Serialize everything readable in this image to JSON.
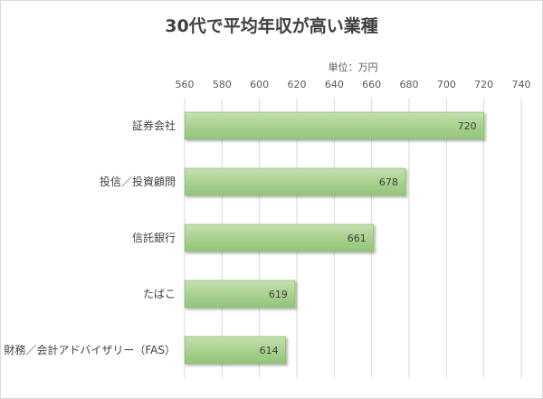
{
  "chart_data": {
    "type": "bar",
    "orientation": "horizontal",
    "title": "30代で平均年収が高い業種",
    "unit_label": "単位：万円",
    "categories": [
      "証券会社",
      "投信／投資顧問",
      "信託銀行",
      "たばこ",
      "財務／会計アドバイザリー（FAS）"
    ],
    "values": [
      720,
      678,
      661,
      619,
      614
    ],
    "xlim": [
      560,
      740
    ],
    "x_ticks": [
      560,
      580,
      600,
      620,
      640,
      660,
      680,
      700,
      720,
      740
    ],
    "grid": true,
    "bar_color": "#a9d18e",
    "bar_edge_color": "#8fbf6f"
  }
}
